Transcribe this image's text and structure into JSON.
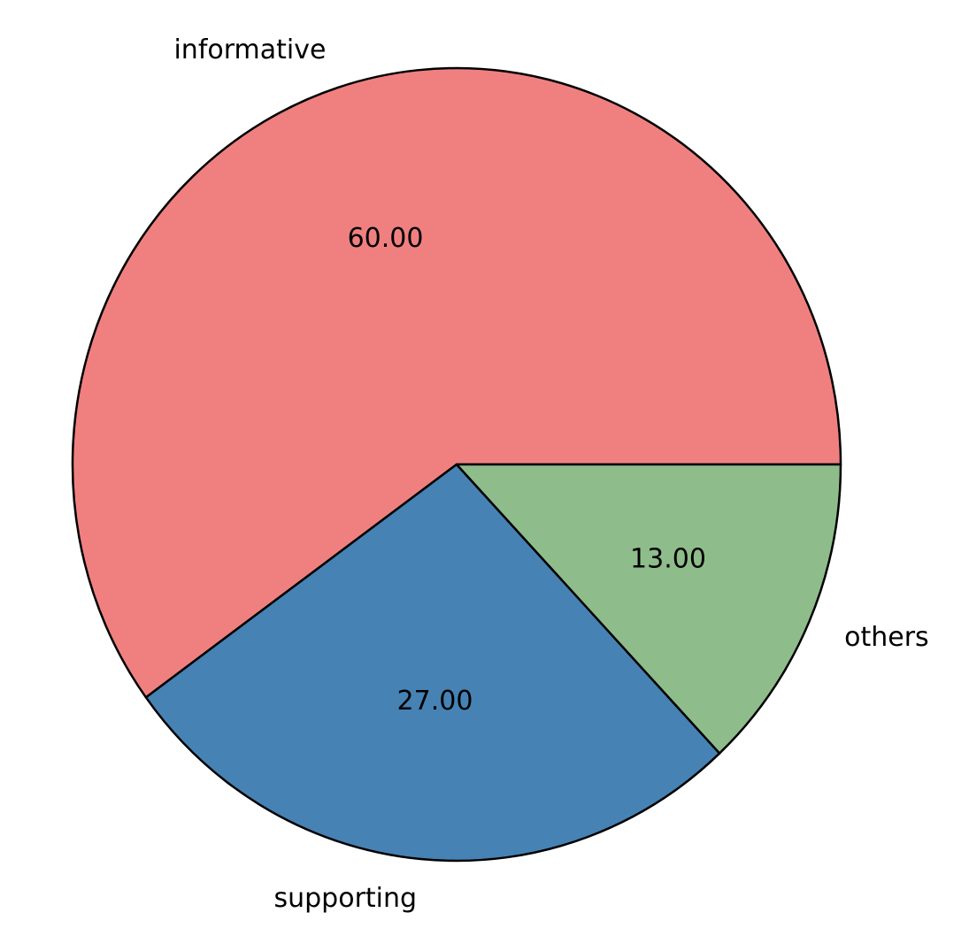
{
  "chart_data": {
    "type": "pie",
    "slices": [
      {
        "label": "informative",
        "value": 60.0,
        "value_label": "60.00",
        "color": "#F08080"
      },
      {
        "label": "supporting",
        "value": 27.0,
        "value_label": "27.00",
        "color": "#4682B4"
      },
      {
        "label": "others",
        "value": 13.0,
        "value_label": "13.00",
        "color": "#8FBC8B"
      }
    ],
    "start_angle_degrees": 0,
    "direction": "counterclockwise",
    "edge_color": "#000000",
    "legend": "none"
  }
}
